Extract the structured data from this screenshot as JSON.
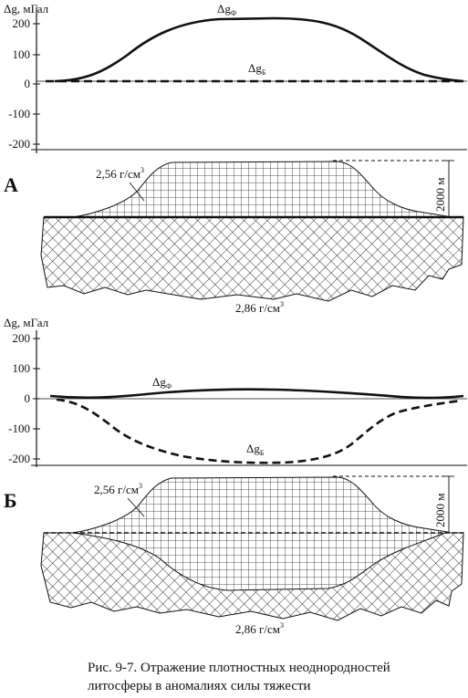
{
  "figure": {
    "caption_line1": "Рис. 9-7. Отражение плотностных неоднородностей",
    "caption_line2": "литосферы в аномалиях силы тяжести"
  },
  "panel_a": {
    "letter": "А",
    "yaxis_label": "Δg, мГал",
    "y_ticks": [
      "200",
      "100",
      "0",
      "-100",
      "-200"
    ],
    "curve_f_label": "Δg",
    "curve_f_sub": "Ф",
    "curve_b_label": "Δg",
    "curve_b_sub": "Б",
    "density_upper": "2,56 г/см",
    "density_lower": "2,86 г/см",
    "density_exp": "3",
    "height_label": "2000 м"
  },
  "panel_b": {
    "letter": "Б",
    "yaxis_label": "Δg, мГал",
    "y_ticks": [
      "200",
      "100",
      "0",
      "-100",
      "-200"
    ],
    "curve_f_label": "Δg",
    "curve_f_sub": "Ф",
    "curve_b_label": "Δg",
    "curve_b_sub": "Б",
    "density_upper": "2,56 г/см",
    "density_lower": "2,86 г/см",
    "density_exp": "3",
    "height_label": "2000 м"
  }
}
